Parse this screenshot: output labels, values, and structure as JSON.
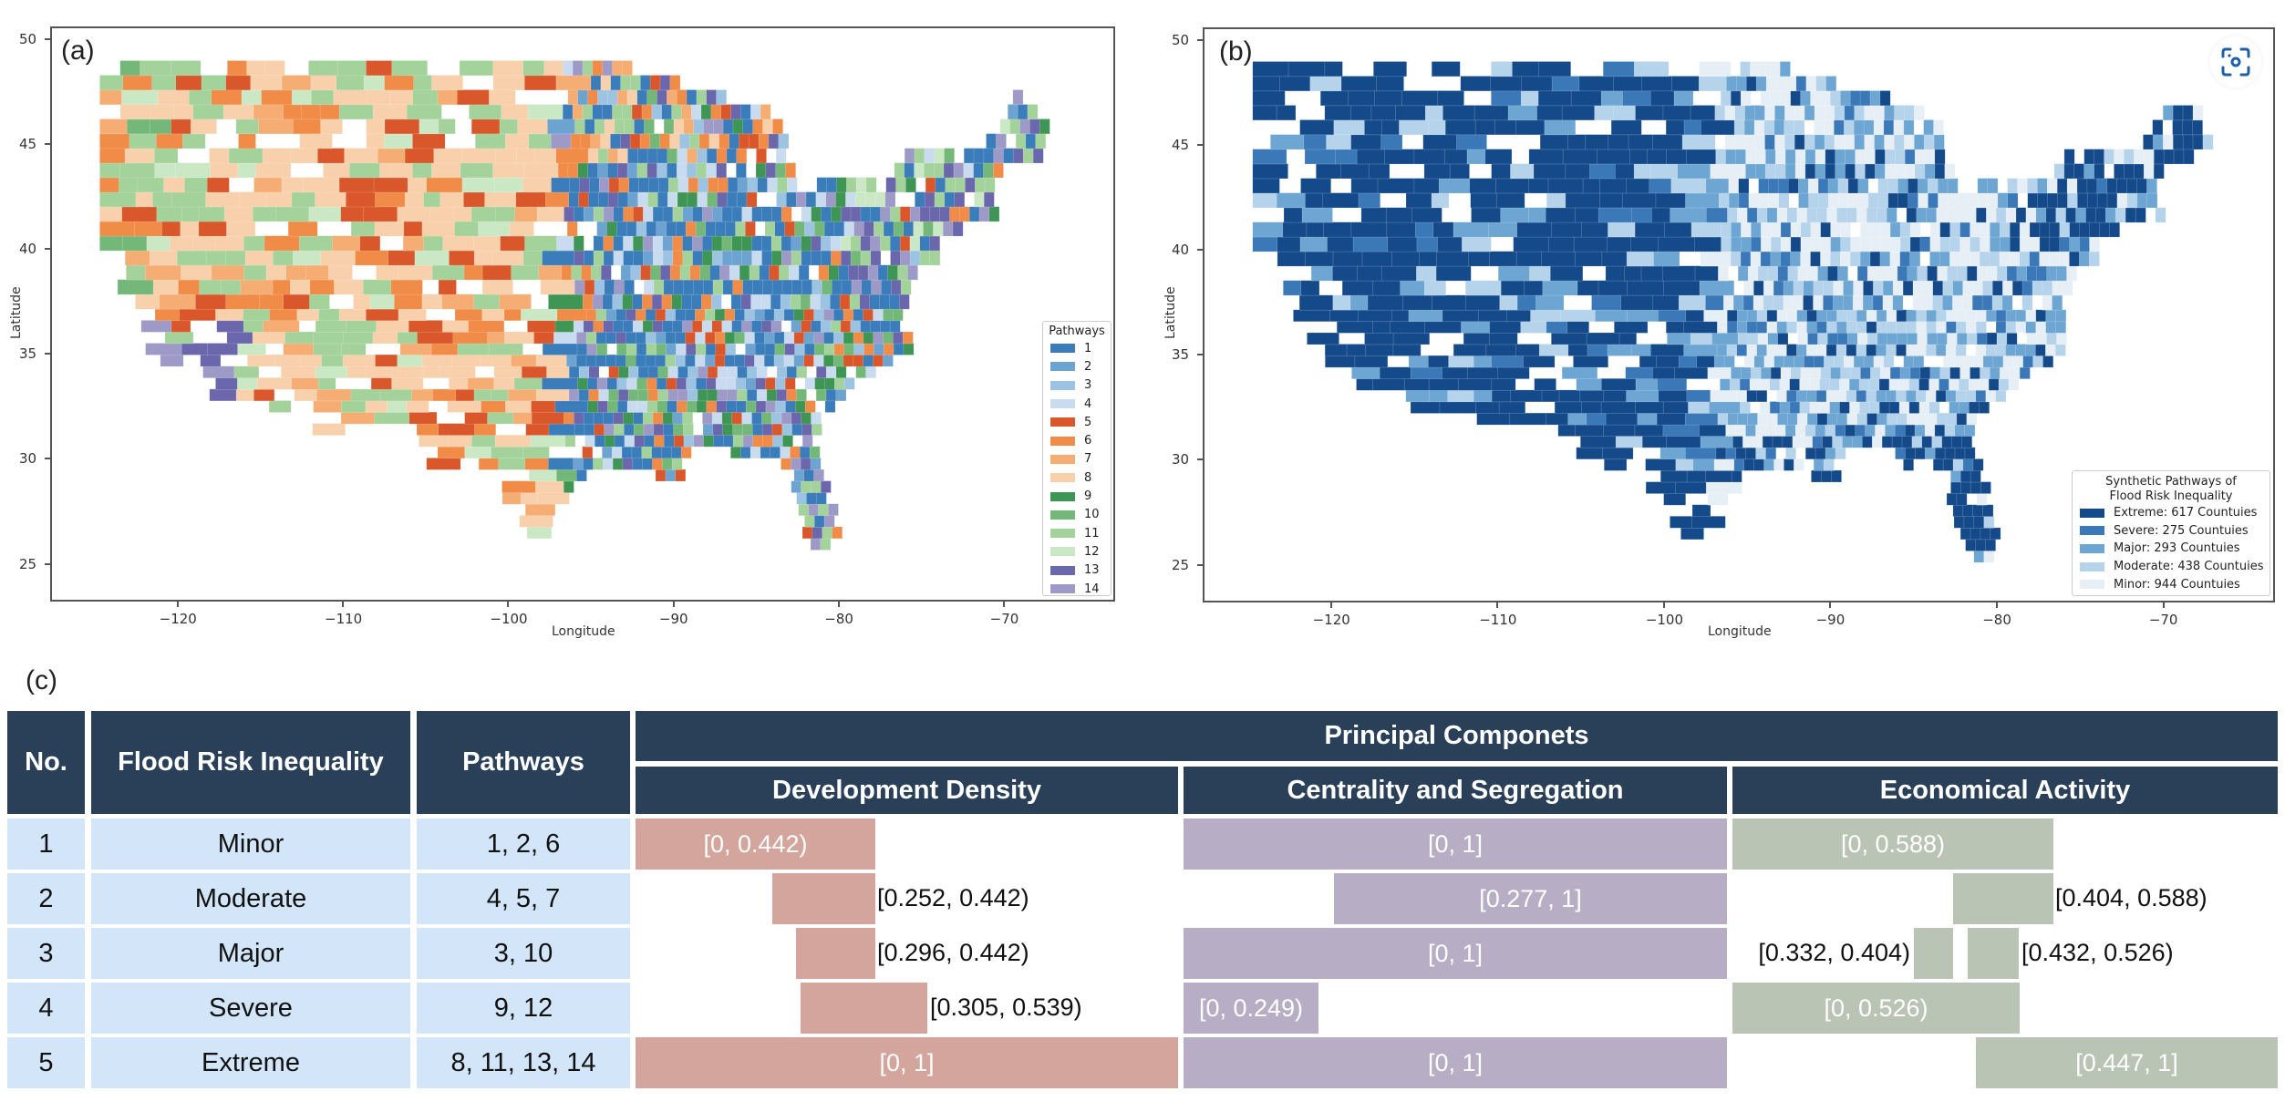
{
  "panels": {
    "a": {
      "label": "(a)",
      "xlabel": "Longitude",
      "ylabel": "Latitude",
      "xticks": [
        "−120",
        "−110",
        "−100",
        "−90",
        "−80",
        "−70"
      ],
      "xtick_values": [
        -120,
        -110,
        -100,
        -90,
        -80,
        -70
      ],
      "yticks": [
        "25",
        "30",
        "35",
        "40",
        "45",
        "50"
      ],
      "ytick_values": [
        25,
        30,
        35,
        40,
        45,
        50
      ],
      "xlim": [
        -127.7,
        -63.3
      ],
      "ylim": [
        23.2,
        50.6
      ],
      "legend": {
        "title": "Pathways",
        "placement": "lower-right",
        "items": [
          {
            "label": "1",
            "color": "#3a7dba"
          },
          {
            "label": "2",
            "color": "#6ca3d1"
          },
          {
            "label": "3",
            "color": "#9dc3e3"
          },
          {
            "label": "4",
            "color": "#c8dbef"
          },
          {
            "label": "5",
            "color": "#d9572a"
          },
          {
            "label": "6",
            "color": "#f08b48"
          },
          {
            "label": "7",
            "color": "#f5ad74"
          },
          {
            "label": "8",
            "color": "#f8d0ab"
          },
          {
            "label": "9",
            "color": "#3f9654"
          },
          {
            "label": "10",
            "color": "#73b878"
          },
          {
            "label": "11",
            "color": "#a3d39b"
          },
          {
            "label": "12",
            "color": "#cbe8c5"
          },
          {
            "label": "13",
            "color": "#6b67ad"
          },
          {
            "label": "14",
            "color": "#9e9ac8"
          }
        ]
      }
    },
    "b": {
      "label": "(b)",
      "xlabel": "Longitude",
      "ylabel": "Latitude",
      "xticks": [
        "−120",
        "−110",
        "−100",
        "−90",
        "−80",
        "−70"
      ],
      "xtick_values": [
        -120,
        -110,
        -100,
        -90,
        -80,
        -70
      ],
      "yticks": [
        "25",
        "30",
        "35",
        "40",
        "45",
        "50"
      ],
      "ytick_values": [
        25,
        30,
        35,
        40,
        45,
        50
      ],
      "xlim": [
        -127.7,
        -63.3
      ],
      "ylim": [
        23.2,
        50.6
      ],
      "legend": {
        "title_line1": "Synthetic Pathways of",
        "title_line2": "Flood Risk Inequality",
        "placement": "lower-right",
        "items": [
          {
            "label": "Extreme: 617 Countuies",
            "color": "#154a8a"
          },
          {
            "label": "Severe: 275 Countuies",
            "color": "#3a78b8"
          },
          {
            "label": "Major: 293 Countuies",
            "color": "#6ea6d3"
          },
          {
            "label": "Moderate: 438 Countuies",
            "color": "#b5d3ea"
          },
          {
            "label": "Minor: 944 Countuies",
            "color": "#e6eff6"
          }
        ]
      }
    }
  },
  "lens_button": {
    "icon": "visual-search-icon"
  },
  "table": {
    "label": "(c)",
    "headers": {
      "no": "No.",
      "inequality": "Flood Risk Inequality",
      "pathways": "Pathways",
      "principal": "Principal Componets",
      "components": [
        "Development Density",
        "Centrality and Segregation",
        "Economical Activity"
      ]
    },
    "component_colors": [
      "#d4a59d",
      "#b7aec6",
      "#b9c4b5"
    ],
    "rows": [
      {
        "no": "1",
        "level": "Minor",
        "pathways": "1, 2, 6",
        "intervals": [
          [
            {
              "lo": 0,
              "hi": 0.442,
              "text": "[0, 0.442)",
              "label": "inside"
            }
          ],
          [
            {
              "lo": 0,
              "hi": 1,
              "text": "[0, 1]",
              "label": "inside"
            }
          ],
          [
            {
              "lo": 0,
              "hi": 0.588,
              "text": "[0, 0.588)",
              "label": "inside"
            }
          ]
        ]
      },
      {
        "no": "2",
        "level": "Moderate",
        "pathways": "4, 5, 7",
        "intervals": [
          [
            {
              "lo": 0.252,
              "hi": 0.442,
              "text": "[0.252, 0.442)",
              "label": "right"
            }
          ],
          [
            {
              "lo": 0.277,
              "hi": 1,
              "text": "[0.277, 1]",
              "label": "inside"
            }
          ],
          [
            {
              "lo": 0.404,
              "hi": 0.588,
              "text": "[0.404, 0.588)",
              "label": "right"
            }
          ]
        ]
      },
      {
        "no": "3",
        "level": "Major",
        "pathways": "3, 10",
        "intervals": [
          [
            {
              "lo": 0.296,
              "hi": 0.442,
              "text": "[0.296, 0.442)",
              "label": "right"
            }
          ],
          [
            {
              "lo": 0,
              "hi": 1,
              "text": "[0, 1]",
              "label": "inside"
            }
          ],
          [
            {
              "lo": 0.332,
              "hi": 0.404,
              "text": "[0.332, 0.404)",
              "label": "left"
            },
            {
              "lo": 0.432,
              "hi": 0.526,
              "text": "[0.432, 0.526)",
              "label": "right"
            }
          ]
        ]
      },
      {
        "no": "4",
        "level": "Severe",
        "pathways": "9, 12",
        "intervals": [
          [
            {
              "lo": 0.305,
              "hi": 0.539,
              "text": "[0.305, 0.539)",
              "label": "right"
            }
          ],
          [
            {
              "lo": 0,
              "hi": 0.249,
              "text": "[0, 0.249)",
              "label": "inside"
            }
          ],
          [
            {
              "lo": 0,
              "hi": 0.526,
              "text": "[0, 0.526)",
              "label": "inside"
            }
          ]
        ]
      },
      {
        "no": "5",
        "level": "Extreme",
        "pathways": "8, 11, 13, 14",
        "intervals": [
          [
            {
              "lo": 0,
              "hi": 1,
              "text": "[0, 1]",
              "label": "inside"
            }
          ],
          [
            {
              "lo": 0,
              "hi": 1,
              "text": "[0, 1]",
              "label": "inside"
            }
          ],
          [
            {
              "lo": 0.447,
              "hi": 1,
              "text": "[0.447, 1]",
              "label": "inside"
            }
          ]
        ]
      }
    ]
  },
  "chart_data": [
    {
      "type": "heatmap",
      "title": "(a) Flood risk inequality pathways by county",
      "xlabel": "Longitude",
      "ylabel": "Latitude",
      "xlim": [
        -127.7,
        -63.3
      ],
      "ylim": [
        23.2,
        50.6
      ],
      "x_ticks": [
        -120,
        -110,
        -100,
        -90,
        -80,
        -70
      ],
      "y_ticks": [
        25,
        30,
        35,
        40,
        45,
        50
      ],
      "legend_title": "Pathways",
      "categories": [
        "1",
        "2",
        "3",
        "4",
        "5",
        "6",
        "7",
        "8",
        "9",
        "10",
        "11",
        "12",
        "13",
        "14"
      ],
      "legend_placement": "lower-right"
    },
    {
      "type": "heatmap",
      "title": "(b) Synthetic Pathways of Flood Risk Inequality",
      "xlabel": "Longitude",
      "ylabel": "Latitude",
      "xlim": [
        -127.7,
        -63.3
      ],
      "ylim": [
        23.2,
        50.6
      ],
      "x_ticks": [
        -120,
        -110,
        -100,
        -90,
        -80,
        -70
      ],
      "y_ticks": [
        25,
        30,
        35,
        40,
        45,
        50
      ],
      "categories": [
        "Extreme",
        "Severe",
        "Major",
        "Moderate",
        "Minor"
      ],
      "values": [
        617,
        275,
        293,
        438,
        944
      ],
      "value_unit": "counties",
      "legend_placement": "lower-right"
    },
    {
      "type": "table",
      "title": "(c) Principal component intervals by flood risk inequality level",
      "columns": [
        "No.",
        "Flood Risk Inequality",
        "Pathways",
        "Development Density",
        "Centrality and Segregation",
        "Economical Activity"
      ],
      "rows": [
        [
          "1",
          "Minor",
          "1, 2, 6",
          "[0, 0.442)",
          "[0, 1]",
          "[0, 0.588)"
        ],
        [
          "2",
          "Moderate",
          "4, 5, 7",
          "[0.252, 0.442)",
          "[0.277, 1]",
          "[0.404, 0.588)"
        ],
        [
          "3",
          "Major",
          "3, 10",
          "[0.296, 0.442)",
          "[0, 1]",
          "[0.332, 0.404) [0.432, 0.526)"
        ],
        [
          "4",
          "Severe",
          "9, 12",
          "[0.305, 0.539)",
          "[0, 0.249)",
          "[0, 0.526)"
        ],
        [
          "5",
          "Extreme",
          "8, 11, 13, 14",
          "[0, 1]",
          "[0, 1]",
          "[0.447, 1]"
        ]
      ]
    }
  ]
}
